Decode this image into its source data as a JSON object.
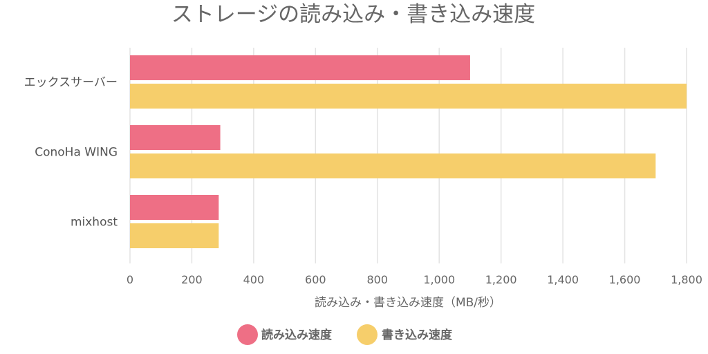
{
  "chart_data": {
    "type": "bar",
    "orientation": "horizontal",
    "title": "ストレージの読み込み・書き込み速度",
    "xlabel": "読み込み・書き込み速度（MB/秒）",
    "ylabel": "",
    "categories": [
      "エックスサーバー",
      "ConoHa WING",
      "mixhost"
    ],
    "series": [
      {
        "name": "読み込み速度",
        "color": "#ee6f85",
        "values": [
          1100,
          292,
          287
        ]
      },
      {
        "name": "書き込み速度",
        "color": "#f6ce6b",
        "values": [
          1800,
          1700,
          287
        ]
      }
    ],
    "xlim": [
      0,
      1800
    ],
    "ticks": [
      0,
      200,
      400,
      600,
      800,
      1000,
      1200,
      1400,
      1600,
      1800
    ],
    "tick_labels": [
      "0",
      "200",
      "400",
      "600",
      "800",
      "1,000",
      "1,200",
      "1,400",
      "1,600",
      "1,800"
    ],
    "grid": true,
    "legend": "bottom"
  }
}
